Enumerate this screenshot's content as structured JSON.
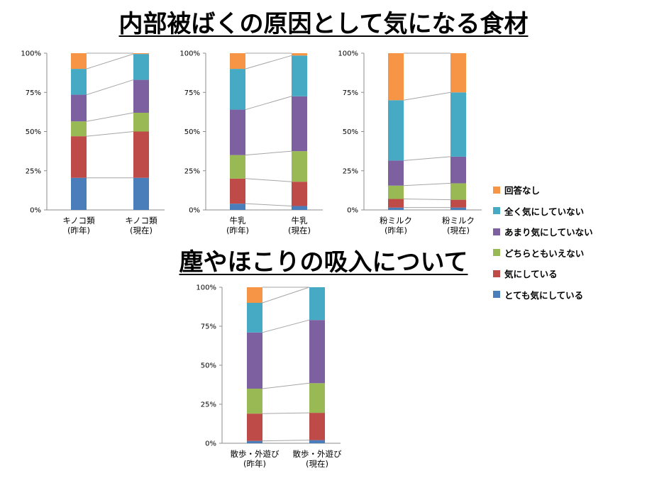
{
  "titles": {
    "main": "内部被ばくの原因として気になる食材",
    "sub": "塵やほこりの吸入について"
  },
  "colors": {
    "とても気にしている": "#4a7ebb",
    "気にしている": "#be4b48",
    "どちらともいえない": "#98b954",
    "あまり気にしていない": "#7d60a0",
    "全く気にしていない": "#46aac5",
    "回答なし": "#f69546"
  },
  "legend": [
    "回答なし",
    "全く気にしていない",
    "あまり気にしていない",
    "どちらともいえない",
    "気にしている",
    "とても気にしている"
  ],
  "chart_data": [
    {
      "type": "bar",
      "stacked": true,
      "percent": true,
      "categories": [
        [
          "キノコ類",
          "(昨年)"
        ],
        [
          "キノコ類",
          "(現在)"
        ]
      ],
      "yticks": [
        "0%",
        "25%",
        "50%",
        "75%",
        "100%"
      ],
      "ylim": [
        0,
        100
      ],
      "series": [
        {
          "name": "とても気にしている",
          "values": [
            20.5,
            20.5
          ]
        },
        {
          "name": "気にしている",
          "values": [
            26.5,
            29.5
          ]
        },
        {
          "name": "どちらともいえない",
          "values": [
            9.5,
            12
          ]
        },
        {
          "name": "あまり気にしていない",
          "values": [
            17,
            21
          ]
        },
        {
          "name": "全く気にしていない",
          "values": [
            16.5,
            16.5
          ]
        },
        {
          "name": "回答なし",
          "values": [
            10,
            0.5
          ]
        }
      ]
    },
    {
      "type": "bar",
      "stacked": true,
      "percent": true,
      "categories": [
        [
          "牛乳",
          "(昨年)"
        ],
        [
          "牛乳",
          "(現在)"
        ]
      ],
      "yticks": [
        "0%",
        "25%",
        "50%",
        "75%",
        "100%"
      ],
      "ylim": [
        0,
        100
      ],
      "series": [
        {
          "name": "とても気にしている",
          "values": [
            4,
            2.5
          ]
        },
        {
          "name": "気にしている",
          "values": [
            16,
            15.5
          ]
        },
        {
          "name": "どちらともいえない",
          "values": [
            15,
            19.5
          ]
        },
        {
          "name": "あまり気にしていない",
          "values": [
            29,
            35
          ]
        },
        {
          "name": "全く気にしていない",
          "values": [
            26,
            26
          ]
        },
        {
          "name": "回答なし",
          "values": [
            10,
            1.5
          ]
        }
      ]
    },
    {
      "type": "bar",
      "stacked": true,
      "percent": true,
      "categories": [
        [
          "粉ミルク",
          "(昨年)"
        ],
        [
          "粉ミルク",
          "(現在)"
        ]
      ],
      "yticks": [
        "0%",
        "25%",
        "50%",
        "75%",
        "100%"
      ],
      "ylim": [
        0,
        100
      ],
      "series": [
        {
          "name": "とても気にしている",
          "values": [
            1.5,
            1.5
          ]
        },
        {
          "name": "気にしている",
          "values": [
            5.5,
            5
          ]
        },
        {
          "name": "どちらともいえない",
          "values": [
            8.5,
            10.5
          ]
        },
        {
          "name": "あまり気にしていない",
          "values": [
            16,
            17
          ]
        },
        {
          "name": "全く気にしていない",
          "values": [
            38.5,
            41
          ]
        },
        {
          "name": "回答なし",
          "values": [
            30,
            25
          ]
        }
      ]
    },
    {
      "type": "bar",
      "stacked": true,
      "percent": true,
      "categories": [
        [
          "散歩・外遊び",
          "(昨年)"
        ],
        [
          "散歩・外遊び",
          "(現在)"
        ]
      ],
      "yticks": [
        "0%",
        "25%",
        "50%",
        "75%",
        "100%"
      ],
      "ylim": [
        0,
        100
      ],
      "series": [
        {
          "name": "とても気にしている",
          "values": [
            1.5,
            2
          ]
        },
        {
          "name": "気にしている",
          "values": [
            17.5,
            17.5
          ]
        },
        {
          "name": "どちらともいえない",
          "values": [
            16,
            19
          ]
        },
        {
          "name": "あまり気にしていない",
          "values": [
            36,
            40.5
          ]
        },
        {
          "name": "全く気にしていない",
          "values": [
            19,
            21
          ]
        },
        {
          "name": "回答なし",
          "values": [
            10,
            0
          ]
        }
      ]
    }
  ]
}
